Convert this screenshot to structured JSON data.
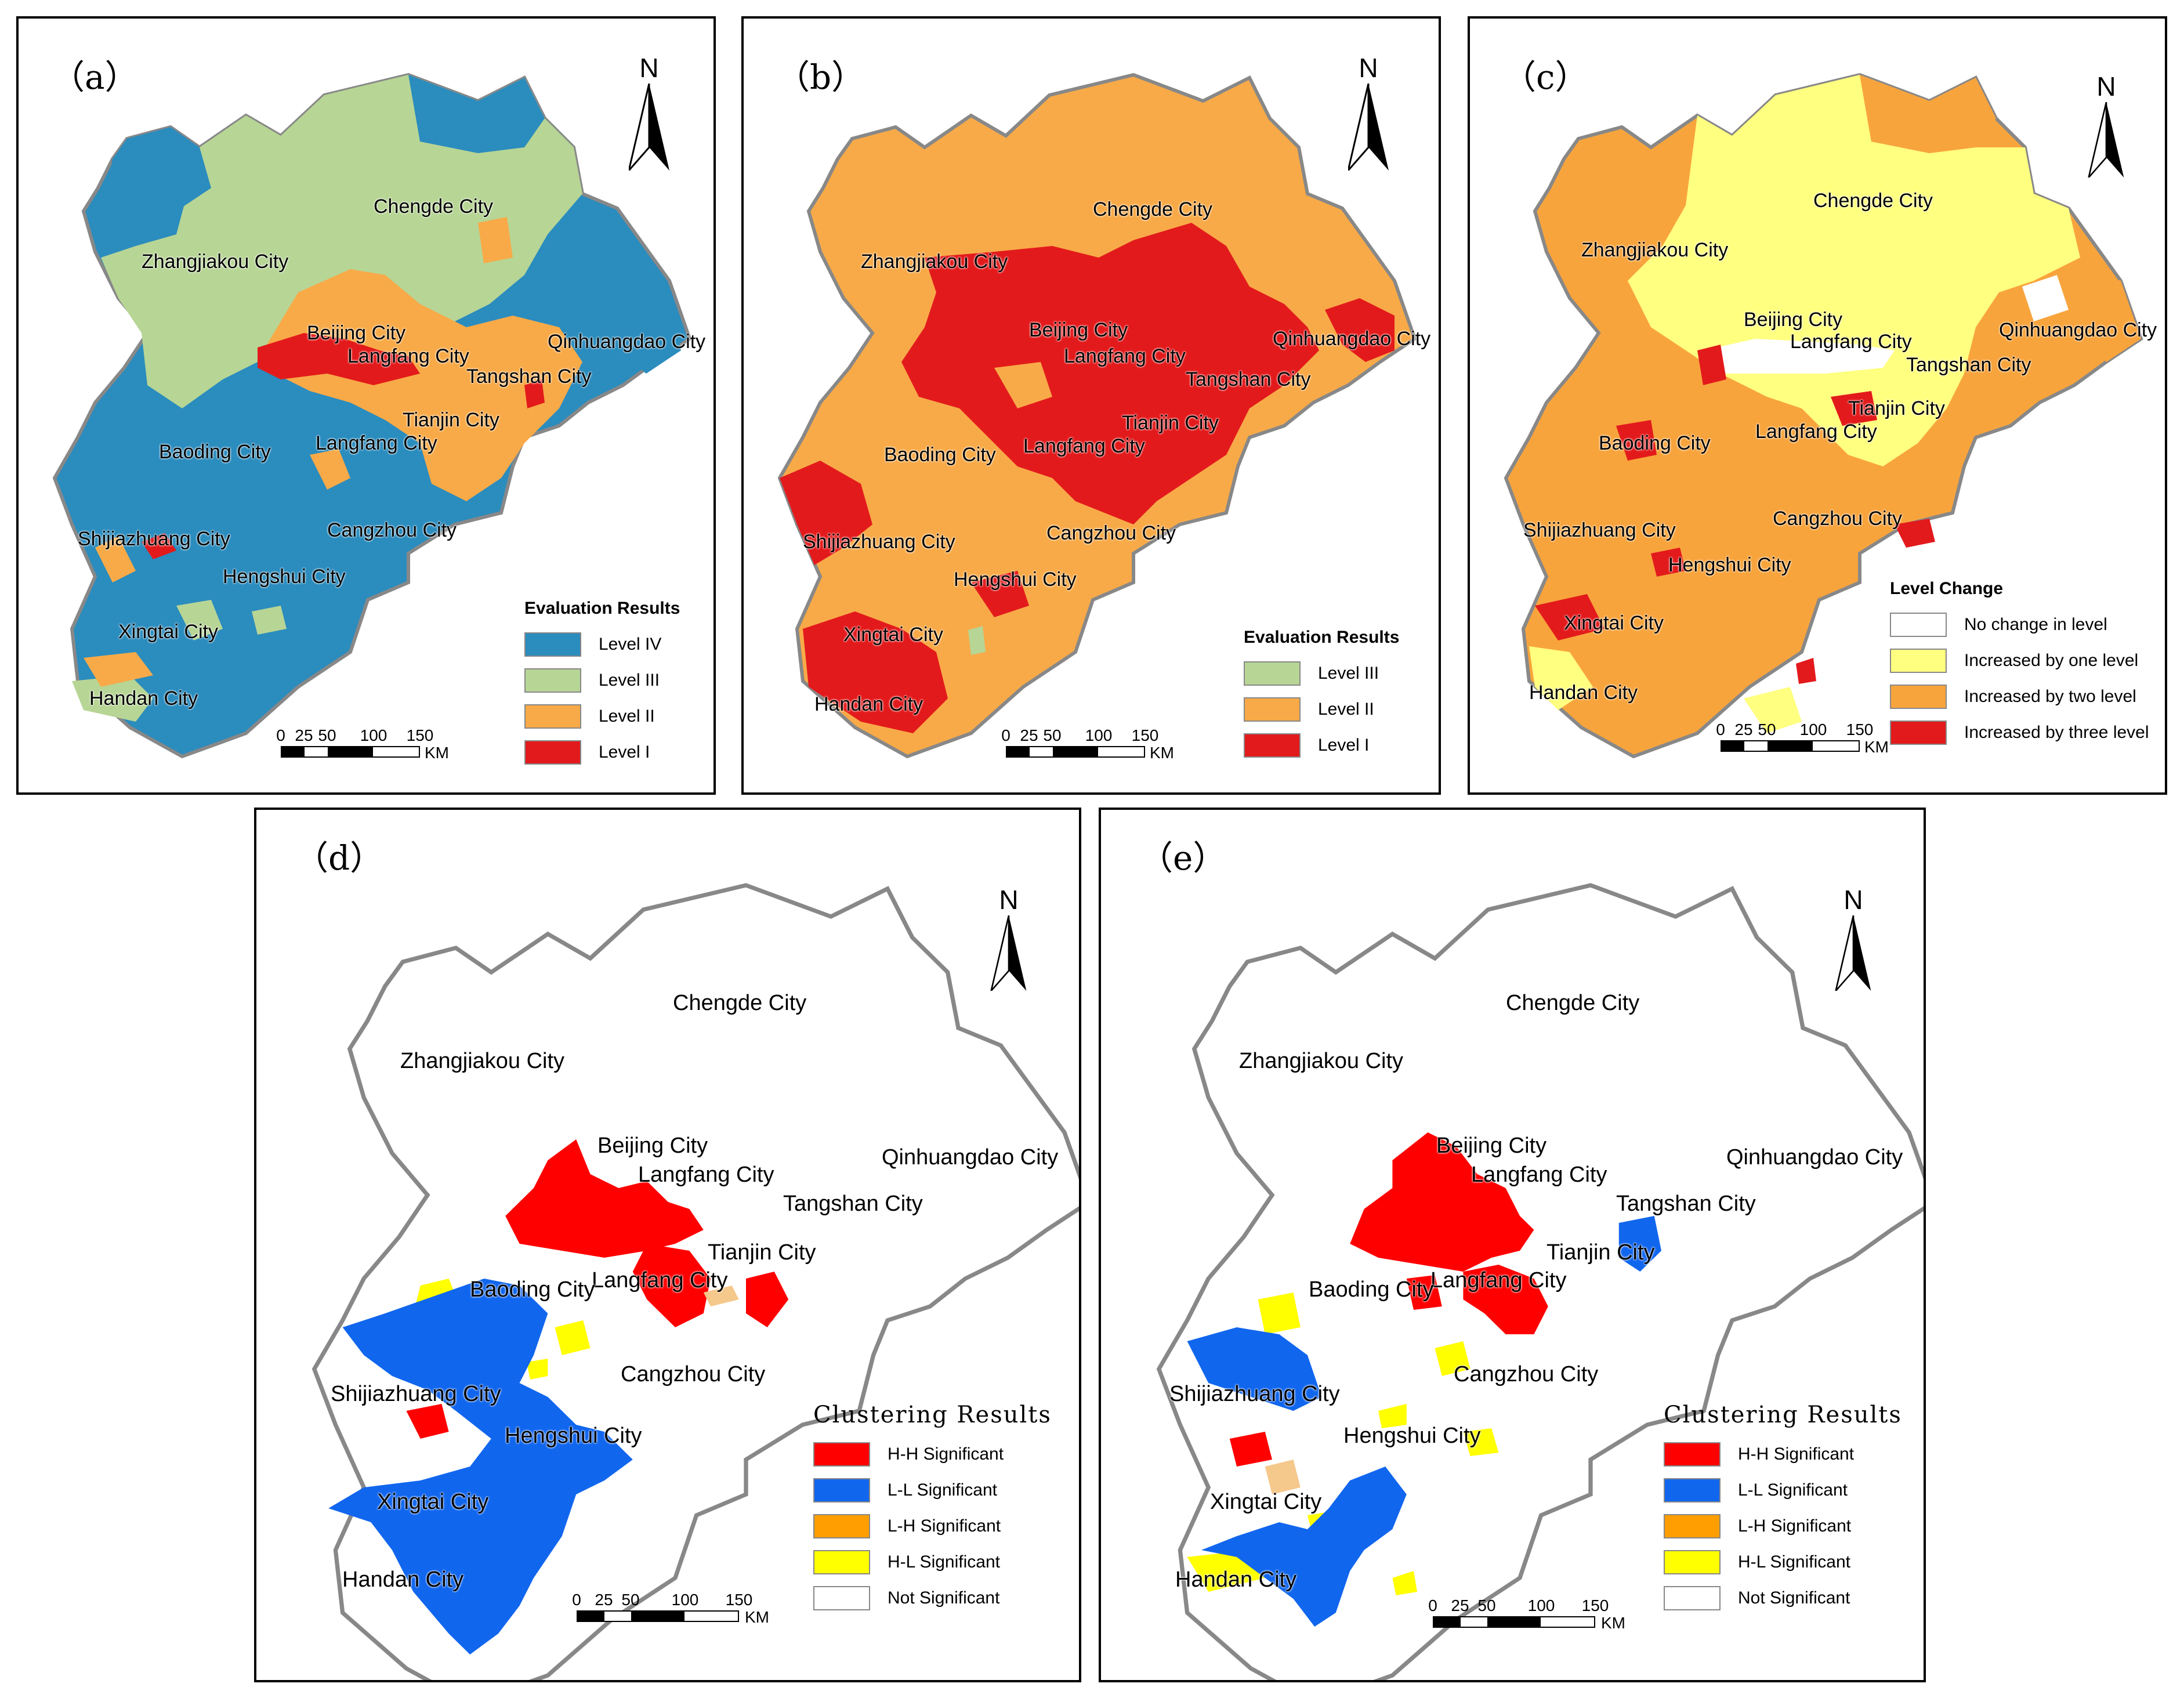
{
  "colors": {
    "level_iv": "#2b8cbe",
    "level_iii": "#b7d595",
    "level_ii": "#f8aa48",
    "level_i": "#e31a1c",
    "no_change": "#ffffff",
    "plus_one": "#ffff80",
    "plus_two": "#f8a43c",
    "plus_three": "#e31a1c",
    "hh": "#ff0000",
    "ll": "#1166ee",
    "lh": "#ff9e00",
    "hl": "#ffff00",
    "ns": "#ffffff",
    "outline": "#888888"
  },
  "north_label": "N",
  "scale": {
    "ticks": [
      "0",
      "25",
      "50",
      "100",
      "150"
    ],
    "unit": "KM"
  },
  "panels": {
    "a": {
      "label": "（a）",
      "legend_title": "Evaluation Results",
      "legend": [
        "Level IV",
        "Level III",
        "Level II",
        "Level I"
      ],
      "cities": {
        "chengde": "Chengde City",
        "zhangjiakou": "Zhangjiakou City",
        "beijing": "Beijing City",
        "langfang1": "Langfang City",
        "qinhuangdao": "Qinhuangdao City",
        "tangshan": "Tangshan City",
        "tianjin": "Tianjin City",
        "langfang2": "Langfang City",
        "baoding": "Baoding City",
        "shijiazhuang": "Shijiazhuang City",
        "cangzhou": "Cangzhou City",
        "hengshui": "Hengshui City",
        "xingtai": "Xingtai City",
        "handan": "Handan City"
      }
    },
    "b": {
      "label": "（b）",
      "legend_title": "Evaluation Results",
      "legend": [
        "Level III",
        "Level II",
        "Level I"
      ],
      "cities": {
        "chengde": "Chengde City",
        "zhangjiakou": "Zhangjiakou City",
        "beijing": "Beijing City",
        "langfang1": "Langfang City",
        "qinhuangdao": "Qinhuangdao City",
        "tangshan": "Tangshan City",
        "tianjin": "Tianjin City",
        "langfang2": "Langfang City",
        "baoding": "Baoding City",
        "shijiazhuang": "Shijiazhuang City",
        "cangzhou": "Cangzhou City",
        "hengshui": "Hengshui City",
        "xingtai": "Xingtai City",
        "handan": "Handan City"
      }
    },
    "c": {
      "label": "（c）",
      "legend_title": "Level Change",
      "legend": [
        "No change in level",
        "Increased by one level",
        "Increased by two level",
        "Increased by three level"
      ],
      "cities": {
        "chengde": "Chengde City",
        "zhangjiakou": "Zhangjiakou City",
        "beijing": "Beijing City",
        "langfang1": "Langfang City",
        "qinhuangdao": "Qinhuangdao City",
        "tangshan": "Tangshan City",
        "tianjin": "Tianjin City",
        "langfang2": "Langfang City",
        "baoding": "Baoding City",
        "shijiazhuang": "Shijiazhuang City",
        "cangzhou": "Cangzhou City",
        "hengshui": "Hengshui City",
        "xingtai": "Xingtai City",
        "handan": "Handan City"
      }
    },
    "d": {
      "label": "（d）",
      "legend_title": "Clustering Results",
      "legend": [
        "H-H Significant",
        "L-L Significant",
        "L-H Significant",
        "H-L Significant",
        "Not Significant"
      ],
      "cities": {
        "chengde": "Chengde City",
        "zhangjiakou": "Zhangjiakou City",
        "beijing": "Beijing City",
        "langfang1": "Langfang City",
        "qinhuangdao": "Qinhuangdao City",
        "tangshan": "Tangshan City",
        "tianjin": "Tianjin City",
        "langfang2": "Langfang City",
        "baoding": "Baoding City",
        "shijiazhuang": "Shijiazhuang City",
        "cangzhou": "Cangzhou City",
        "hengshui": "Hengshui City",
        "xingtai": "Xingtai City",
        "handan": "Handan City"
      }
    },
    "e": {
      "label": "（e）",
      "legend_title": "Clustering Results",
      "legend": [
        "H-H Significant",
        "L-L Significant",
        "L-H Significant",
        "H-L Significant",
        "Not Significant"
      ],
      "cities": {
        "chengde": "Chengde City",
        "zhangjiakou": "Zhangjiakou City",
        "beijing": "Beijing City",
        "langfang1": "Langfang City",
        "qinhuangdao": "Qinhuangdao City",
        "tangshan": "Tangshan City",
        "tianjin": "Tianjin City",
        "langfang2": "Langfang City",
        "baoding": "Baoding City",
        "shijiazhuang": "Shijiazhuang City",
        "cangzhou": "Cangzhou City",
        "hengshui": "Hengshui City",
        "xingtai": "Xingtai City",
        "handan": "Handan City"
      }
    }
  }
}
